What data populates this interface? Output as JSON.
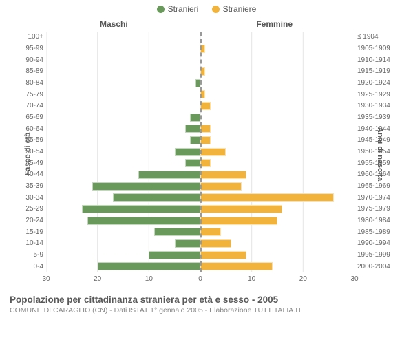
{
  "legend": {
    "male": {
      "label": "Stranieri",
      "color": "#6a9a5b"
    },
    "female": {
      "label": "Straniere",
      "color": "#f1b33c"
    }
  },
  "headers": {
    "male": "Maschi",
    "female": "Femmine"
  },
  "axis_titles": {
    "left": "Fasce di età",
    "right": "Anni di nascita"
  },
  "chart": {
    "type": "population-pyramid",
    "x_max": 30,
    "x_ticks": [
      30,
      20,
      10,
      0,
      10,
      20,
      30
    ],
    "background_color": "#ffffff",
    "grid_color": "#e5e5e5",
    "centerline_color": "#999999",
    "bar_male_color": "#6a9a5b",
    "bar_female_color": "#f1b33c",
    "rows": [
      {
        "age": "100+",
        "birth": "≤ 1904",
        "m": 0,
        "f": 0
      },
      {
        "age": "95-99",
        "birth": "1905-1909",
        "m": 0,
        "f": 1
      },
      {
        "age": "90-94",
        "birth": "1910-1914",
        "m": 0,
        "f": 0
      },
      {
        "age": "85-89",
        "birth": "1915-1919",
        "m": 0,
        "f": 1
      },
      {
        "age": "80-84",
        "birth": "1920-1924",
        "m": 1,
        "f": 0
      },
      {
        "age": "75-79",
        "birth": "1925-1929",
        "m": 0,
        "f": 1
      },
      {
        "age": "70-74",
        "birth": "1930-1934",
        "m": 0,
        "f": 2
      },
      {
        "age": "65-69",
        "birth": "1935-1939",
        "m": 2,
        "f": 0
      },
      {
        "age": "60-64",
        "birth": "1940-1944",
        "m": 3,
        "f": 2
      },
      {
        "age": "55-59",
        "birth": "1945-1949",
        "m": 2,
        "f": 2
      },
      {
        "age": "50-54",
        "birth": "1950-1954",
        "m": 5,
        "f": 5
      },
      {
        "age": "45-49",
        "birth": "1955-1959",
        "m": 3,
        "f": 2
      },
      {
        "age": "40-44",
        "birth": "1960-1964",
        "m": 12,
        "f": 9
      },
      {
        "age": "35-39",
        "birth": "1965-1969",
        "m": 21,
        "f": 8
      },
      {
        "age": "30-34",
        "birth": "1970-1974",
        "m": 17,
        "f": 26
      },
      {
        "age": "25-29",
        "birth": "1975-1979",
        "m": 23,
        "f": 16
      },
      {
        "age": "20-24",
        "birth": "1980-1984",
        "m": 22,
        "f": 15
      },
      {
        "age": "15-19",
        "birth": "1985-1989",
        "m": 9,
        "f": 4
      },
      {
        "age": "10-14",
        "birth": "1990-1994",
        "m": 5,
        "f": 6
      },
      {
        "age": "5-9",
        "birth": "1995-1999",
        "m": 10,
        "f": 9
      },
      {
        "age": "0-4",
        "birth": "2000-2004",
        "m": 20,
        "f": 14
      }
    ]
  },
  "footer": {
    "title": "Popolazione per cittadinanza straniera per età e sesso - 2005",
    "subtitle": "COMUNE DI CARAGLIO (CN) - Dati ISTAT 1° gennaio 2005 - Elaborazione TUTTITALIA.IT"
  },
  "typography": {
    "legend_fontsize": 12,
    "axis_label_fontsize": 10,
    "axis_title_fontsize": 11,
    "title_fontsize": 13.5,
    "subtitle_fontsize": 10.5
  }
}
